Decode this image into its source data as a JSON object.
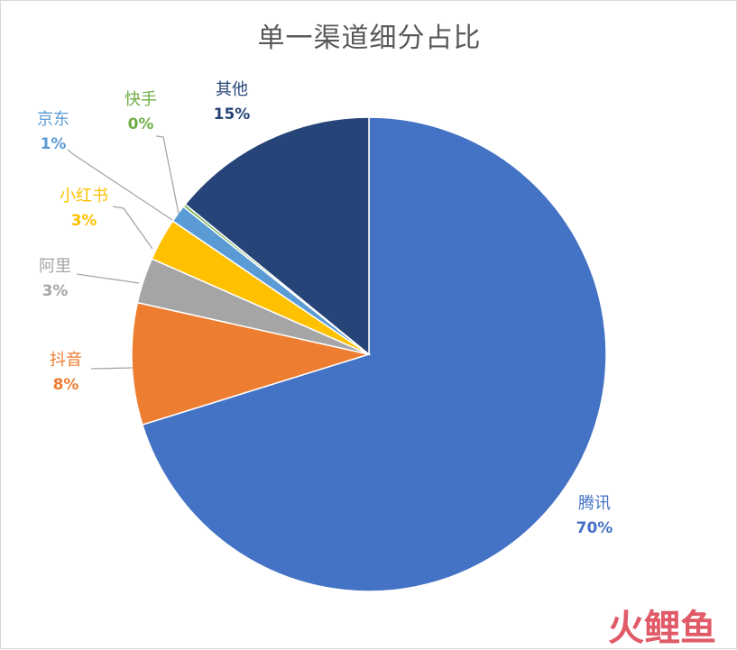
{
  "chart_data": {
    "type": "pie",
    "title": "单一渠道细分占比",
    "start_angle_deg": 0,
    "direction": "clockwise",
    "slices": [
      {
        "name": "腾讯",
        "value": 70,
        "label": "70%",
        "color": "#4472C4"
      },
      {
        "name": "抖音",
        "value": 8,
        "label": "8%",
        "color": "#ED7D31"
      },
      {
        "name": "阿里",
        "value": 3,
        "label": "3%",
        "color": "#A5A5A5"
      },
      {
        "name": "小红书",
        "value": 3,
        "label": "3%",
        "color": "#FFC000"
      },
      {
        "name": "京东",
        "value": 1,
        "label": "1%",
        "color": "#5B9BD5"
      },
      {
        "name": "快手",
        "value": 0,
        "label": "0%",
        "color": "#70AD47"
      },
      {
        "name": "其他",
        "value": 15,
        "label": "15%",
        "color": "#264478"
      }
    ]
  },
  "watermark": {
    "brand_text": "火鲤鱼",
    "colors": {
      "accent": "#e05a67"
    }
  }
}
